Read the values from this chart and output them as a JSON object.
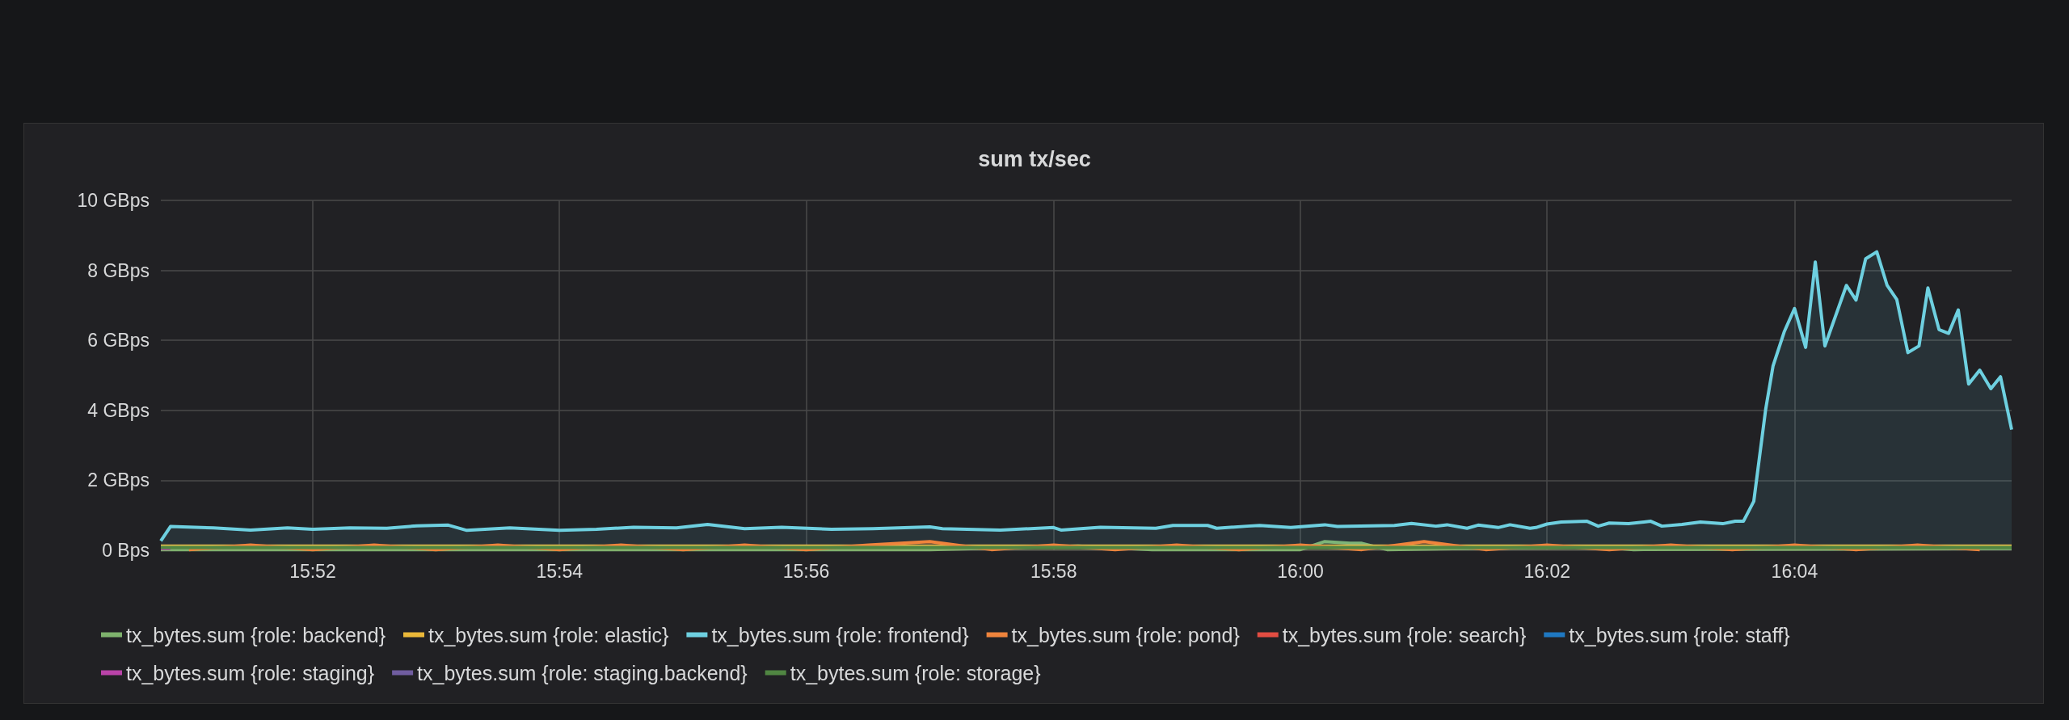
{
  "chart_data": {
    "type": "area",
    "title": "sum tx/sec",
    "xlim": [
      15.8462,
      16.096
    ],
    "xticks": [
      {
        "value": 15.8667,
        "label": "15:52"
      },
      {
        "value": 15.9,
        "label": "15:54"
      },
      {
        "value": 15.9333,
        "label": "15:56"
      },
      {
        "value": 15.9667,
        "label": "15:58"
      },
      {
        "value": 16.0,
        "label": "16:00"
      },
      {
        "value": 16.0333,
        "label": "16:02"
      },
      {
        "value": 16.0667,
        "label": "16:04"
      }
    ],
    "ylim": [
      0,
      10
    ],
    "yticks": [
      {
        "value": 0,
        "label": "0 Bps"
      },
      {
        "value": 2,
        "label": "2 GBps"
      },
      {
        "value": 4,
        "label": "4 GBps"
      },
      {
        "value": 6,
        "label": "6 GBps"
      },
      {
        "value": 8,
        "label": "8 GBps"
      },
      {
        "value": 10,
        "label": "10 GBps"
      }
    ],
    "grid": true,
    "legend": "bottom",
    "marker": "none",
    "line_style": "solid",
    "series": [
      {
        "name": "tx_bytes.sum {role: backend}",
        "color": "#7eb26d",
        "x": [
          15.8462,
          15.95,
          15.97,
          15.98,
          16.0,
          16.0033,
          16.0067,
          16.0083,
          16.0117,
          16.04,
          16.045,
          16.096
        ],
        "values": [
          0.02,
          0.02,
          0.12,
          0.02,
          0.02,
          0.25,
          0.2,
          0.2,
          0.02,
          0.1,
          0.02,
          0.05
        ]
      },
      {
        "name": "tx_bytes.sum {role: elastic}",
        "color": "#eab839",
        "x": [
          15.8462,
          16.096
        ],
        "values": [
          0.12,
          0.12
        ]
      },
      {
        "name": "tx_bytes.sum {role: frontend}",
        "color": "#6ed0e0",
        "x": [
          15.8462,
          15.8475,
          15.8533,
          15.8583,
          15.8633,
          15.8667,
          15.8717,
          15.8767,
          15.8808,
          15.885,
          15.8875,
          15.8933,
          15.9,
          15.905,
          15.91,
          15.9158,
          15.92,
          15.925,
          15.93,
          15.9367,
          15.9423,
          15.95,
          15.9517,
          15.9595,
          15.9667,
          15.9677,
          15.973,
          15.9805,
          15.9828,
          15.9875,
          15.9887,
          15.9928,
          15.9945,
          15.9987,
          16.0033,
          16.005,
          16.0127,
          16.015,
          16.0183,
          16.0198,
          16.0225,
          16.024,
          16.0267,
          16.0283,
          16.031,
          16.0318,
          16.0333,
          16.0352,
          16.0387,
          16.0402,
          16.0417,
          16.0443,
          16.0473,
          16.0488,
          16.0515,
          16.054,
          16.057,
          16.0587,
          16.0598,
          16.0612,
          16.0628,
          16.0638,
          16.0653,
          16.0667,
          16.0682,
          16.0695,
          16.0708,
          16.0737,
          16.075,
          16.0763,
          16.0778,
          16.0792,
          16.0805,
          16.082,
          16.0835,
          16.0847,
          16.0862,
          16.0875,
          16.0888,
          16.0902,
          16.0917,
          16.0932,
          16.0945,
          16.096
        ],
        "values": [
          0.27,
          0.68,
          0.64,
          0.58,
          0.64,
          0.6,
          0.64,
          0.63,
          0.7,
          0.72,
          0.57,
          0.64,
          0.57,
          0.6,
          0.66,
          0.64,
          0.74,
          0.62,
          0.66,
          0.6,
          0.62,
          0.67,
          0.62,
          0.58,
          0.65,
          0.58,
          0.66,
          0.63,
          0.71,
          0.71,
          0.63,
          0.69,
          0.71,
          0.65,
          0.73,
          0.68,
          0.71,
          0.77,
          0.69,
          0.73,
          0.63,
          0.72,
          0.65,
          0.73,
          0.63,
          0.65,
          0.75,
          0.81,
          0.83,
          0.69,
          0.78,
          0.76,
          0.83,
          0.69,
          0.74,
          0.81,
          0.76,
          0.83,
          0.83,
          1.4,
          4.02,
          5.27,
          6.24,
          6.91,
          5.8,
          8.24,
          5.84,
          7.57,
          7.15,
          8.33,
          8.53,
          7.57,
          7.17,
          5.65,
          5.84,
          7.5,
          6.31,
          6.2,
          6.87,
          4.75,
          5.15,
          4.62,
          4.96,
          3.45
        ]
      },
      {
        "name": "tx_bytes.sum {role: pond}",
        "color": "#ef843c",
        "x": [
          15.85,
          15.8583,
          15.8667,
          15.875,
          15.8833,
          15.8917,
          15.9,
          15.9083,
          15.9167,
          15.925,
          15.9333,
          15.9417,
          15.95,
          15.9583,
          15.9667,
          15.975,
          15.9833,
          15.9917,
          16.0,
          16.0083,
          16.0167,
          16.025,
          16.0333,
          16.0417,
          16.05,
          16.0583,
          16.0667,
          16.075,
          16.0833,
          16.0917
        ],
        "values": [
          0.02,
          0.15,
          0.02,
          0.15,
          0.02,
          0.15,
          0.02,
          0.15,
          0.02,
          0.15,
          0.02,
          0.15,
          0.25,
          0.02,
          0.15,
          0.02,
          0.15,
          0.02,
          0.15,
          0.02,
          0.25,
          0.02,
          0.15,
          0.02,
          0.15,
          0.02,
          0.15,
          0.02,
          0.15,
          0.02
        ]
      },
      {
        "name": "tx_bytes.sum {role: search}",
        "color": "#e24d42"
      },
      {
        "name": "tx_bytes.sum {role: staff}",
        "color": "#1f78c1"
      },
      {
        "name": "tx_bytes.sum {role: staging}",
        "color": "#ba43a9",
        "x": [
          15.8462,
          15.8475
        ],
        "values": [
          0.05,
          0.05
        ]
      },
      {
        "name": "tx_bytes.sum {role: staging.backend}",
        "color": "#705da0"
      },
      {
        "name": "tx_bytes.sum {role: storage}",
        "color": "#508642",
        "x": [
          15.8462,
          16.096
        ],
        "values": [
          0.08,
          0.08
        ]
      }
    ]
  }
}
